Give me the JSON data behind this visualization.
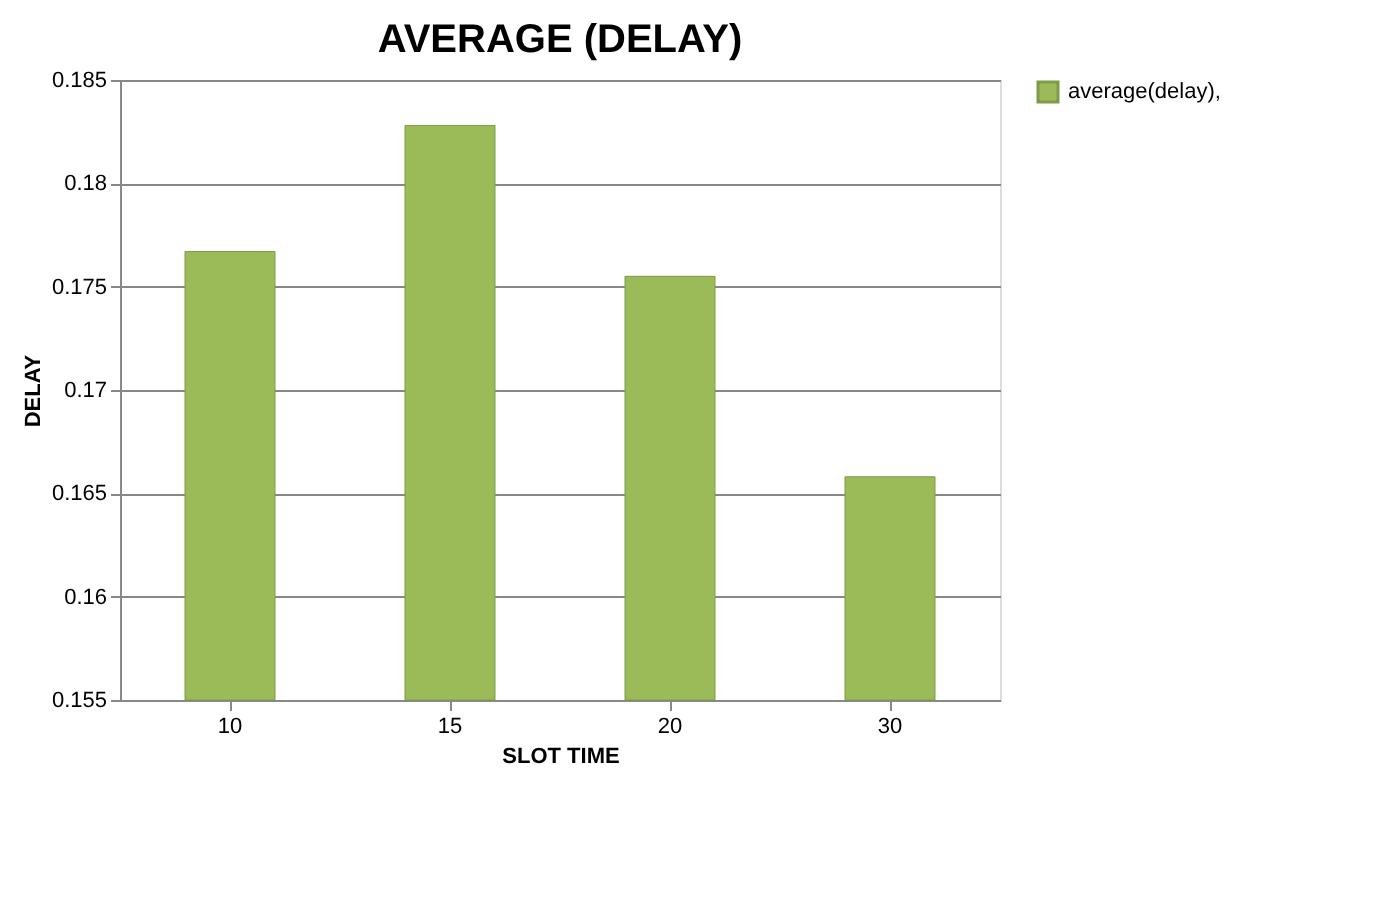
{
  "chart_data": {
    "type": "bar",
    "title": "AVERAGE (DELAY)",
    "xlabel": "SLOT TIME",
    "ylabel": "DELAY",
    "categories": [
      "10",
      "15",
      "20",
      "30"
    ],
    "series": [
      {
        "name": "average(delay),",
        "color": "#9bbb59",
        "values": [
          0.1767,
          0.1828,
          0.1755,
          0.1658
        ]
      }
    ],
    "ylim": [
      0.155,
      0.185
    ],
    "yticks": [
      0.155,
      0.16,
      0.165,
      0.17,
      0.175,
      0.18,
      0.185
    ],
    "grid": "y",
    "legend": "right"
  }
}
